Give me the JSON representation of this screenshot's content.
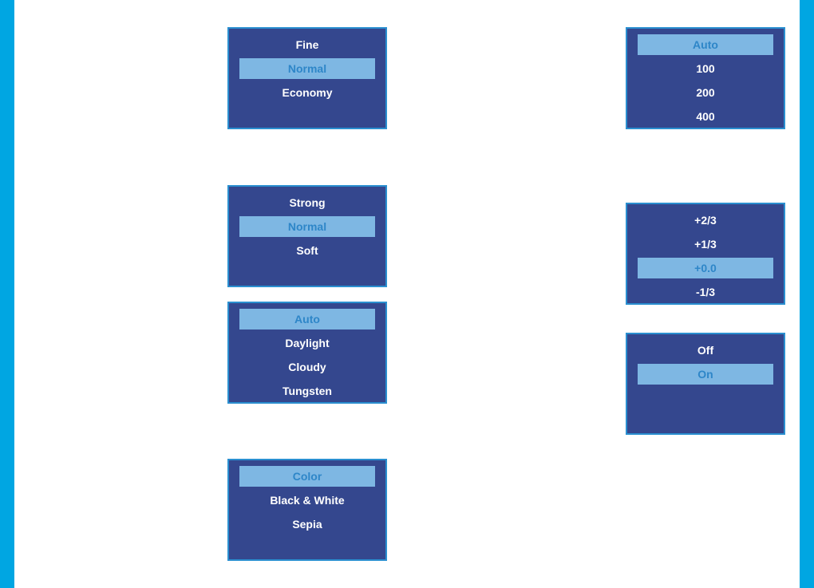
{
  "colors": {
    "accent": "#00a6e2",
    "menu_bg": "#34478e",
    "highlight": "#7eb7e3",
    "highlight_text": "#2e86c8"
  },
  "menus": [
    {
      "items": [
        "Fine",
        "Normal",
        "Economy"
      ],
      "selected": 1
    },
    {
      "items": [
        "Strong",
        "Normal",
        "Soft"
      ],
      "selected": 1
    },
    {
      "items": [
        "Auto",
        "Daylight",
        "Cloudy",
        "Tungsten"
      ],
      "selected": 0
    },
    {
      "items": [
        "Color",
        "Black & White",
        "Sepia"
      ],
      "selected": 0
    },
    {
      "items": [
        "Auto",
        "100",
        "200",
        "400"
      ],
      "selected": 0
    },
    {
      "items": [
        "+2/3",
        "+1/3",
        "+0.0",
        "-1/3"
      ],
      "selected": 2
    },
    {
      "items": [
        "Off",
        "On"
      ],
      "selected": 1
    }
  ]
}
